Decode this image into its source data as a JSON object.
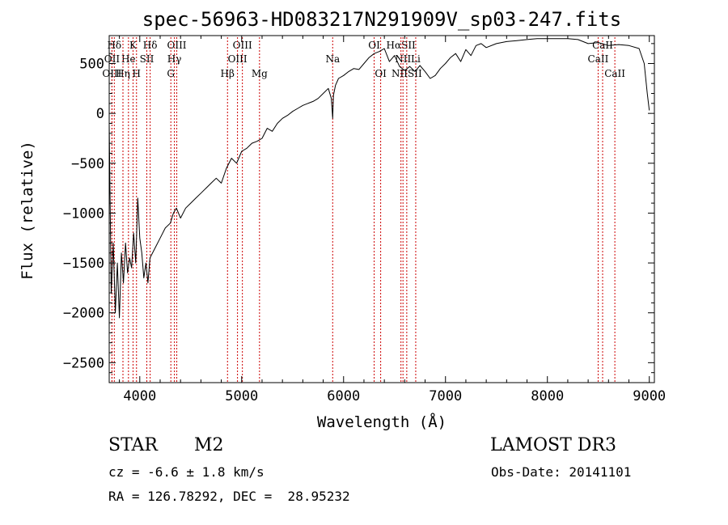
{
  "chart_data": {
    "type": "line",
    "title": "spec-56963-HD083217N291909V_sp03-247.fits",
    "xlabel": "Wavelength (Å)",
    "ylabel": "Flux (relative)",
    "xlim": [
      3700,
      9050
    ],
    "ylim": [
      -2700,
      780
    ],
    "xticks": [
      4000,
      5000,
      6000,
      7000,
      8000,
      9000
    ],
    "yticks": [
      500,
      0,
      -500,
      -1000,
      -1500,
      -2000,
      -2500
    ],
    "grid": false,
    "line_color": "#000000",
    "marker_color": "#cc0000",
    "series": [
      {
        "x": [
          3700,
          3720,
          3740,
          3760,
          3780,
          3800,
          3820,
          3840,
          3860,
          3880,
          3900,
          3920,
          3940,
          3960,
          3980,
          4000,
          4020,
          4040,
          4060,
          4080,
          4100,
          4150,
          4200,
          4250,
          4300,
          4330,
          4360,
          4400,
          4450,
          4500,
          4550,
          4600,
          4650,
          4700,
          4750,
          4800,
          4850,
          4900,
          4950,
          5000,
          5050,
          5100,
          5150,
          5200,
          5250,
          5300,
          5350,
          5400,
          5450,
          5500,
          5550,
          5600,
          5650,
          5700,
          5750,
          5800,
          5850,
          5880,
          5893,
          5900,
          5920,
          5950,
          6000,
          6050,
          6100,
          6150,
          6200,
          6250,
          6300,
          6350,
          6400,
          6450,
          6500,
          6550,
          6600,
          6650,
          6700,
          6750,
          6800,
          6850,
          6900,
          6950,
          7000,
          7050,
          7100,
          7150,
          7200,
          7250,
          7300,
          7350,
          7400,
          7500,
          7600,
          7700,
          7800,
          7900,
          8000,
          8100,
          8200,
          8300,
          8400,
          8500,
          8600,
          8700,
          8800,
          8900,
          8950,
          8980,
          9000
        ],
        "y": [
          -100,
          -1800,
          -1300,
          -2000,
          -1500,
          -2050,
          -1400,
          -1700,
          -1300,
          -1600,
          -1450,
          -1550,
          -1200,
          -1500,
          -850,
          -1250,
          -1400,
          -1650,
          -1500,
          -1700,
          -1450,
          -1350,
          -1250,
          -1150,
          -1100,
          -1000,
          -950,
          -1050,
          -950,
          -900,
          -850,
          -800,
          -750,
          -700,
          -650,
          -700,
          -550,
          -450,
          -500,
          -380,
          -350,
          -300,
          -280,
          -250,
          -150,
          -180,
          -100,
          -50,
          -20,
          20,
          50,
          80,
          100,
          120,
          150,
          200,
          250,
          150,
          -50,
          180,
          280,
          350,
          380,
          420,
          450,
          440,
          500,
          560,
          600,
          620,
          650,
          520,
          580,
          470,
          430,
          470,
          420,
          480,
          420,
          350,
          380,
          450,
          500,
          560,
          600,
          520,
          640,
          580,
          680,
          700,
          660,
          700,
          720,
          730,
          740,
          750,
          750,
          750,
          750,
          740,
          700,
          710,
          680,
          690,
          680,
          650,
          500,
          200,
          30
        ]
      }
    ],
    "line_markers": [
      {
        "label": "Hδ",
        "x": 3750,
        "row": 1
      },
      {
        "label": "K",
        "x": 3934,
        "row": 1
      },
      {
        "label": "Hδ",
        "x": 4102,
        "row": 1
      },
      {
        "label": "OIII",
        "x": 4363,
        "row": 1
      },
      {
        "label": "OIII",
        "x": 5007,
        "row": 1
      },
      {
        "label": "OI",
        "x": 6300,
        "row": 1
      },
      {
        "label": "HαSII",
        "x": 6563,
        "row": 1
      },
      {
        "label": "CaII",
        "x": 8542,
        "row": 1
      },
      {
        "label": "OII",
        "x": 3727,
        "row": 2
      },
      {
        "label": "He",
        "x": 3889,
        "row": 2
      },
      {
        "label": "SII",
        "x": 4069,
        "row": 2
      },
      {
        "label": "Hγ",
        "x": 4340,
        "row": 2
      },
      {
        "label": "OIII",
        "x": 4959,
        "row": 2
      },
      {
        "label": "Na",
        "x": 5893,
        "row": 2
      },
      {
        "label": "NII",
        "x": 6583,
        "row": 2
      },
      {
        "label": "Li",
        "x": 6708,
        "row": 2
      },
      {
        "label": "CaII",
        "x": 8498,
        "row": 2
      },
      {
        "label": "OIII",
        "x": 3727,
        "row": 3
      },
      {
        "label": "Hη",
        "x": 3835,
        "row": 3
      },
      {
        "label": "H",
        "x": 3968,
        "row": 3
      },
      {
        "label": "G",
        "x": 4305,
        "row": 3
      },
      {
        "label": "Hβ",
        "x": 4861,
        "row": 3
      },
      {
        "label": "Mg",
        "x": 5175,
        "row": 3
      },
      {
        "label": "OI",
        "x": 6364,
        "row": 3
      },
      {
        "label": "NIISII",
        "x": 6620,
        "row": 3
      },
      {
        "label": "CaII",
        "x": 8662,
        "row": 3
      }
    ]
  },
  "info": {
    "object_type": "STAR",
    "subclass": "M2",
    "survey": "LAMOST DR3",
    "cz": "cz = -6.6 ± 1.8 km/s",
    "obs_date": "Obs-Date: 20141101",
    "coords": "RA = 126.78292, DEC =  28.95232"
  }
}
